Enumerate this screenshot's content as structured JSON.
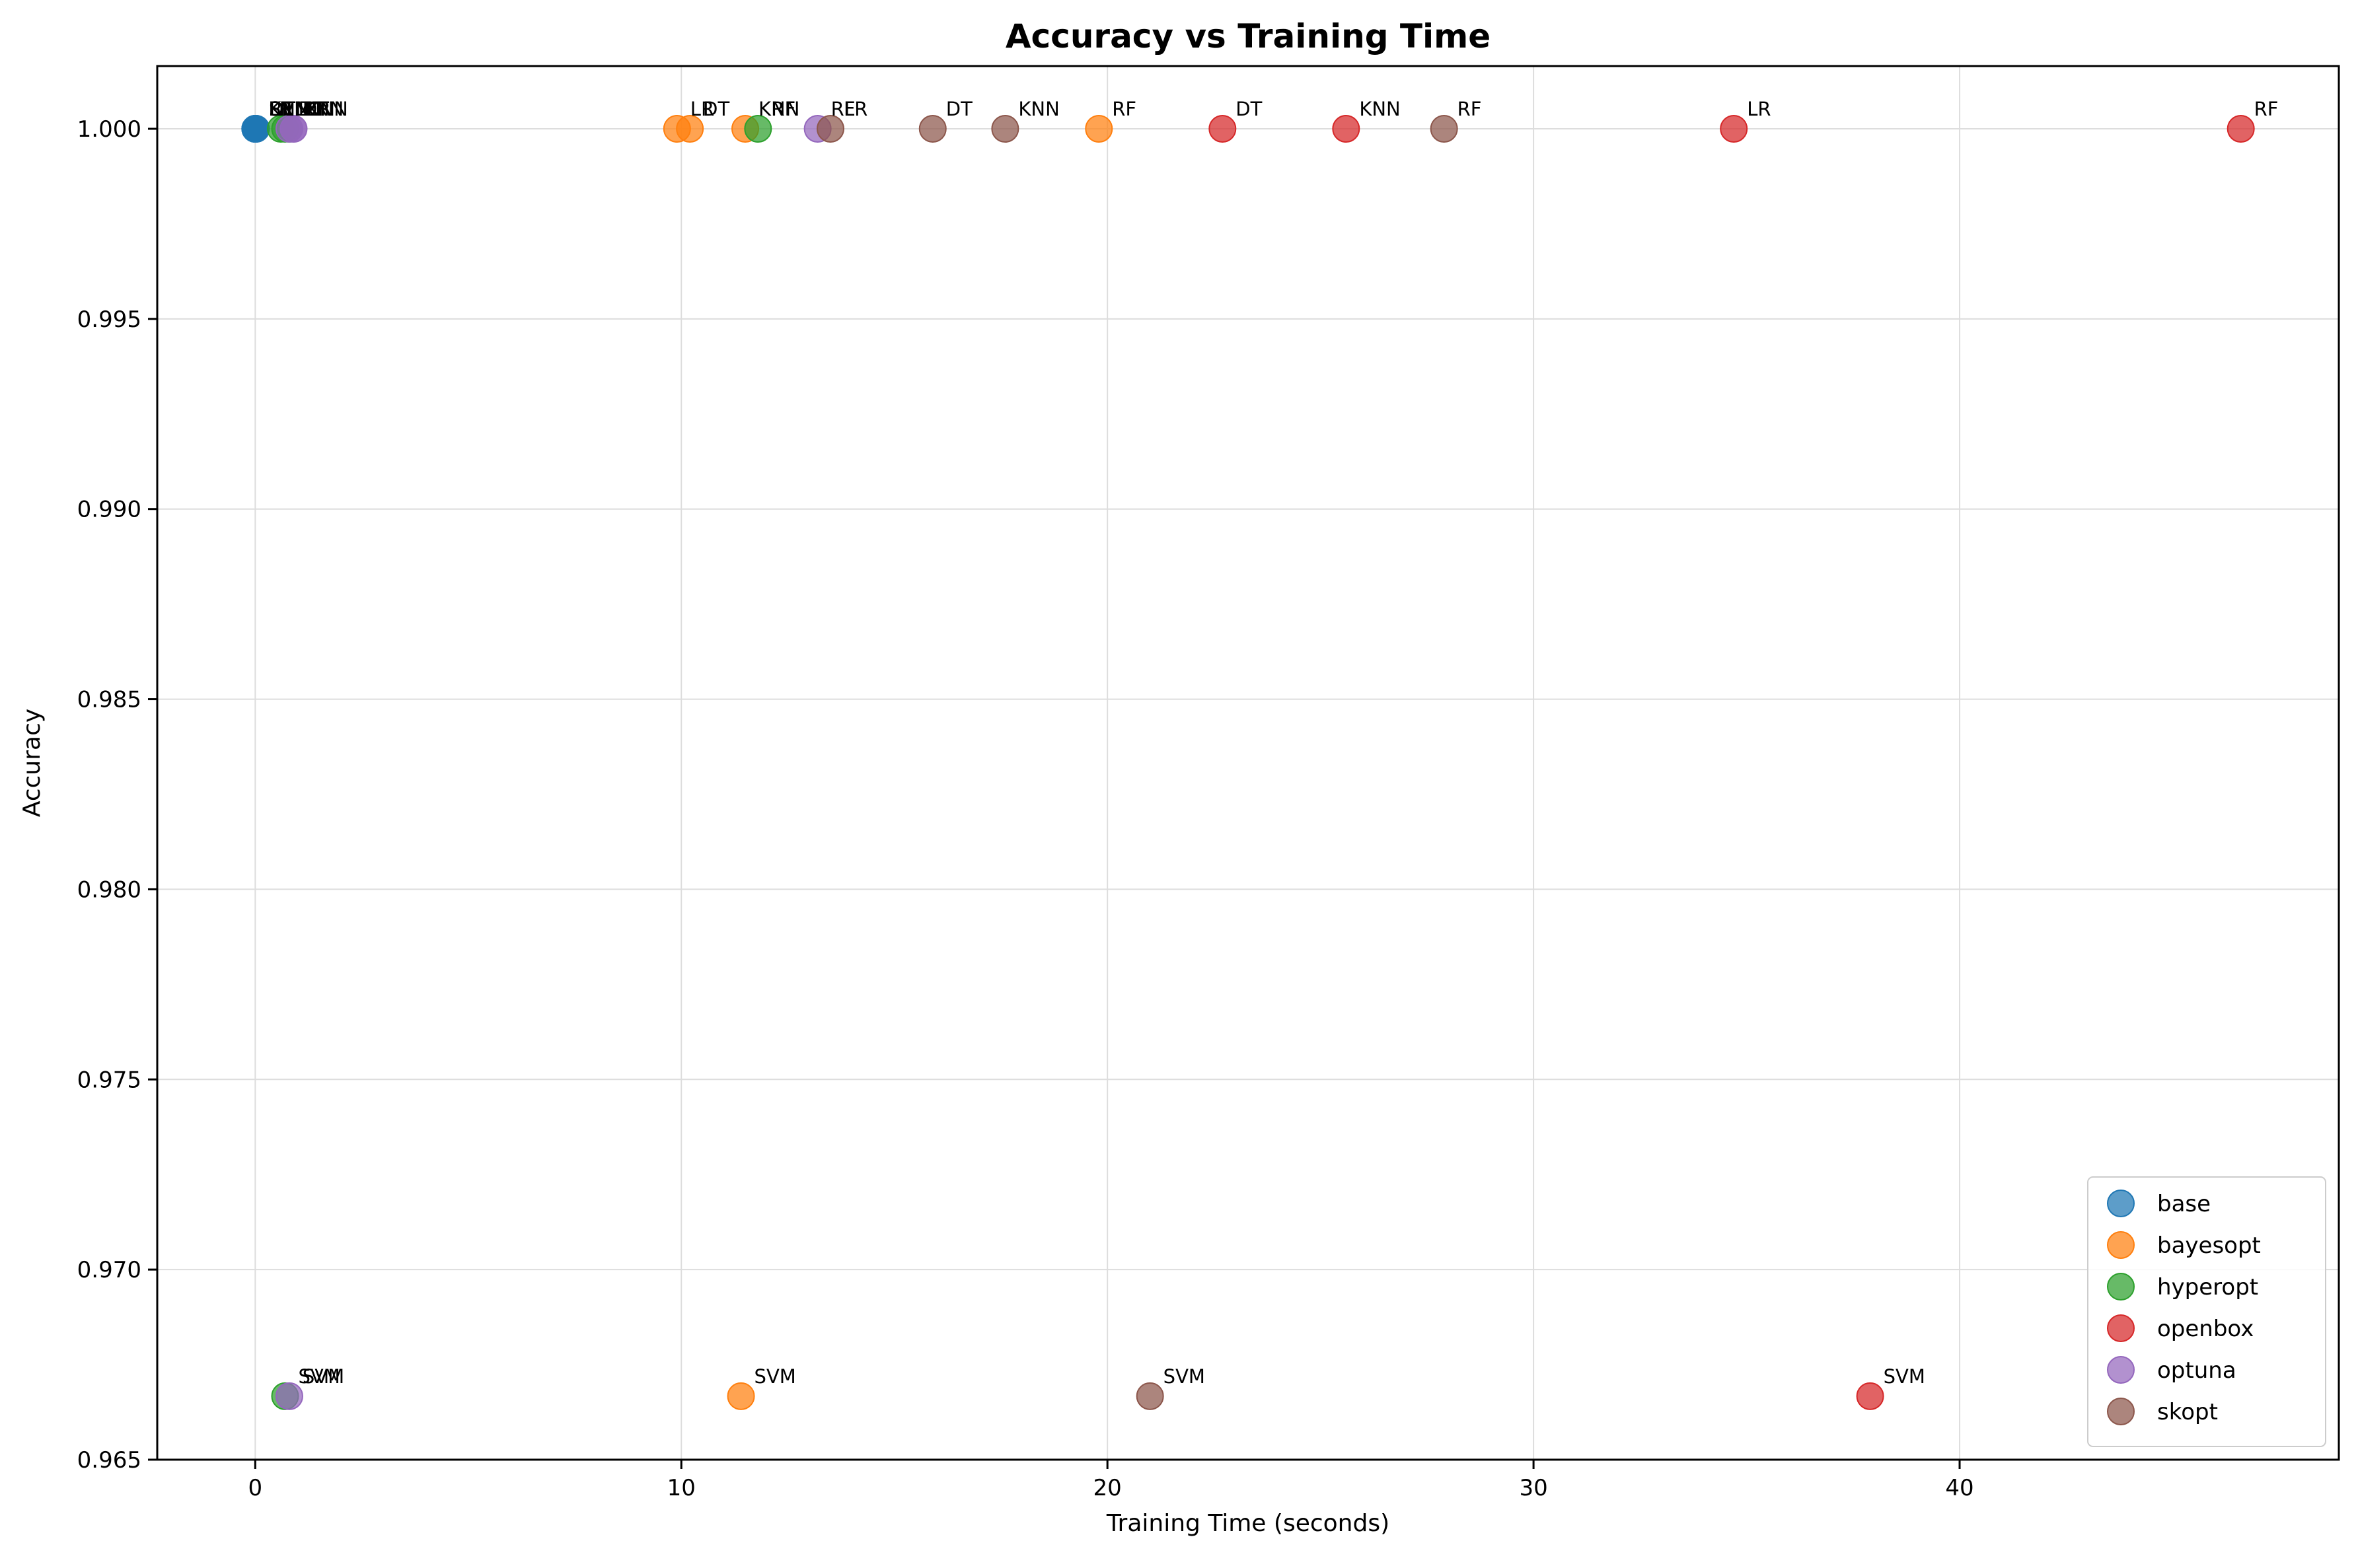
{
  "chart_data": {
    "type": "scatter",
    "title": "Accuracy vs Training Time",
    "xlabel": "Training Time (seconds)",
    "ylabel": "Accuracy",
    "xlim": [
      -2.3,
      48.9
    ],
    "ylim": [
      0.965,
      1.00165
    ],
    "xticks": [
      0,
      10,
      20,
      30,
      40
    ],
    "xtick_labels": [
      "0",
      "10",
      "20",
      "30",
      "40"
    ],
    "yticks": [
      0.965,
      0.97,
      0.975,
      0.98,
      0.985,
      0.99,
      0.995,
      1.0
    ],
    "ytick_labels": [
      "0.965",
      "0.970",
      "0.975",
      "0.980",
      "0.985",
      "0.990",
      "0.995",
      "1.000"
    ],
    "grid": true,
    "legend_position": "bottom-right",
    "series": [
      {
        "name": "base",
        "color": "#1f77b4",
        "points": [
          {
            "x": 0.0,
            "y": 1.0,
            "label": "LR"
          },
          {
            "x": 0.01,
            "y": 1.0,
            "label": "SVM"
          },
          {
            "x": 0.02,
            "y": 1.0,
            "label": "RF"
          },
          {
            "x": 0.01,
            "y": 1.0,
            "label": "DT"
          },
          {
            "x": 0.0,
            "y": 1.0,
            "label": "KNN"
          }
        ]
      },
      {
        "name": "bayesopt",
        "color": "#ff7f0e",
        "points": [
          {
            "x": 9.9,
            "y": 1.0,
            "label": "LR"
          },
          {
            "x": 11.4,
            "y": 0.96667,
            "label": "SVM"
          },
          {
            "x": 19.8,
            "y": 1.0,
            "label": "RF"
          },
          {
            "x": 10.2,
            "y": 1.0,
            "label": "DT"
          },
          {
            "x": 11.5,
            "y": 1.0,
            "label": "KNN"
          }
        ]
      },
      {
        "name": "hyperopt",
        "color": "#2ca02c",
        "points": [
          {
            "x": 0.6,
            "y": 1.0,
            "label": "LR"
          },
          {
            "x": 0.7,
            "y": 0.96667,
            "label": "SVM"
          },
          {
            "x": 11.8,
            "y": 1.0,
            "label": "RF"
          },
          {
            "x": 0.7,
            "y": 1.0,
            "label": "DT"
          },
          {
            "x": 0.8,
            "y": 1.0,
            "label": "KNN"
          }
        ]
      },
      {
        "name": "openbox",
        "color": "#d62728",
        "points": [
          {
            "x": 34.7,
            "y": 1.0,
            "label": "LR"
          },
          {
            "x": 37.9,
            "y": 0.96667,
            "label": "SVM"
          },
          {
            "x": 46.6,
            "y": 1.0,
            "label": "RF"
          },
          {
            "x": 22.7,
            "y": 1.0,
            "label": "DT"
          },
          {
            "x": 25.6,
            "y": 1.0,
            "label": "KNN"
          }
        ]
      },
      {
        "name": "optuna",
        "color": "#9467bd",
        "points": [
          {
            "x": 0.9,
            "y": 1.0,
            "label": "LR"
          },
          {
            "x": 0.8,
            "y": 0.96667,
            "label": "SVM"
          },
          {
            "x": 13.2,
            "y": 1.0,
            "label": "RF"
          },
          {
            "x": 0.8,
            "y": 1.0,
            "label": "DT"
          },
          {
            "x": 0.9,
            "y": 1.0,
            "label": "KNN"
          }
        ]
      },
      {
        "name": "skopt",
        "color": "#8c564b",
        "points": [
          {
            "x": 13.5,
            "y": 1.0,
            "label": "LR"
          },
          {
            "x": 21.0,
            "y": 0.96667,
            "label": "SVM"
          },
          {
            "x": 27.9,
            "y": 1.0,
            "label": "RF"
          },
          {
            "x": 15.9,
            "y": 1.0,
            "label": "DT"
          },
          {
            "x": 17.6,
            "y": 1.0,
            "label": "KNN"
          }
        ]
      }
    ]
  }
}
